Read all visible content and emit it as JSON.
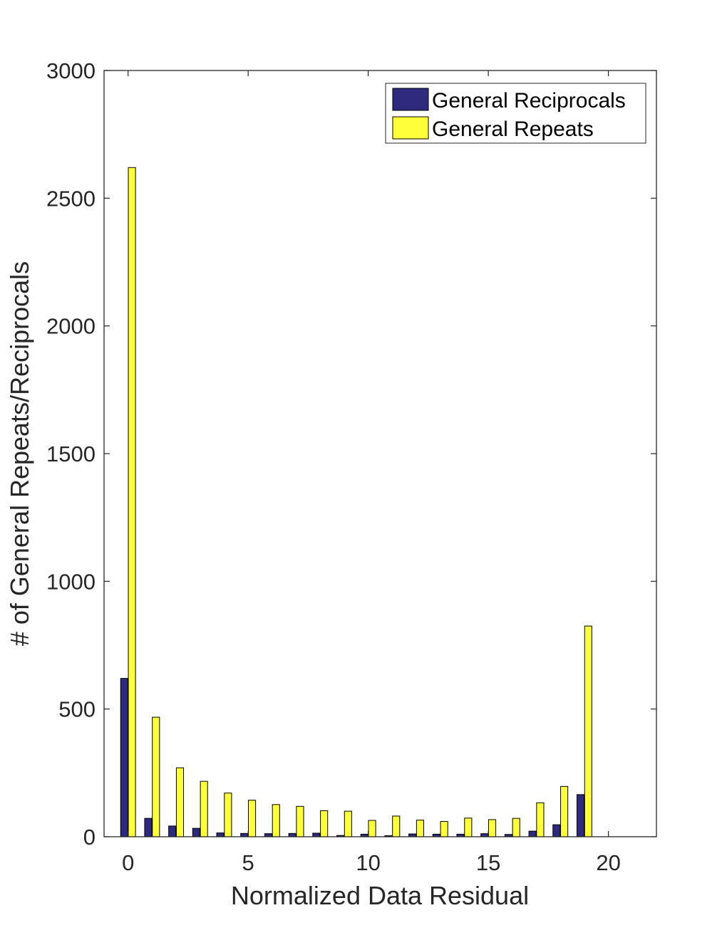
{
  "chart_data": {
    "type": "bar",
    "title": "",
    "xlabel": "Normalized Data Residual",
    "ylabel": "# of General Repeats/Reciprocals",
    "xlim": [
      -1,
      22
    ],
    "ylim": [
      0,
      3000
    ],
    "x_ticks": [
      0,
      5,
      10,
      15,
      20
    ],
    "y_ticks": [
      0,
      500,
      1000,
      1500,
      2000,
      2500,
      3000
    ],
    "grid": false,
    "legend_position": "top-right",
    "x": [
      0,
      1,
      2,
      3,
      4,
      5,
      6,
      7,
      8,
      9,
      10,
      11,
      12,
      13,
      14,
      15,
      16,
      17,
      18,
      19,
      20,
      21
    ],
    "series": [
      {
        "name": "General Reciprocals",
        "color": "#2e2a7d",
        "values": [
          620,
          72,
          42,
          33,
          15,
          13,
          12,
          13,
          14,
          5,
          10,
          4,
          11,
          10,
          10,
          12,
          9,
          22,
          47,
          165,
          0,
          0
        ]
      },
      {
        "name": "General Repeats",
        "color": "#ffff3a",
        "values": [
          2620,
          468,
          270,
          217,
          171,
          143,
          126,
          119,
          102,
          100,
          64,
          81,
          65,
          60,
          73,
          67,
          72,
          133,
          197,
          825,
          0,
          0
        ]
      }
    ]
  }
}
